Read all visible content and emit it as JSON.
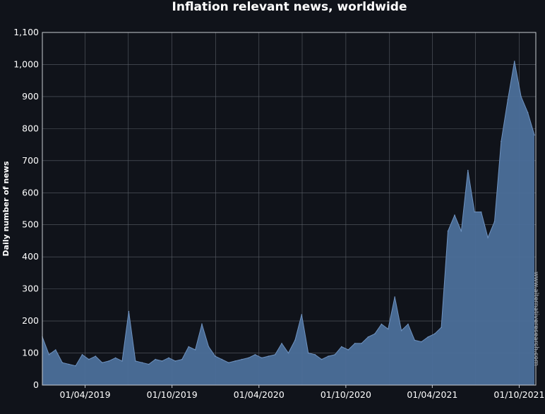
{
  "chart_data": {
    "type": "area",
    "title": "Inflation relevant news, worldwide",
    "xlabel": "",
    "ylabel": "Daily number of news",
    "ylim": [
      0,
      1100
    ],
    "yticks": [
      0,
      100,
      200,
      300,
      400,
      500,
      600,
      700,
      800,
      900,
      1000,
      1100
    ],
    "ytick_labels": [
      "0",
      "100",
      "200",
      "300",
      "400",
      "500",
      "600",
      "700",
      "800",
      "900",
      "1,000",
      "1,100"
    ],
    "xticks": [
      "2019-04-01",
      "2019-10-01",
      "2020-04-01",
      "2020-10-01",
      "2021-04-01",
      "2021-10-01"
    ],
    "xtick_labels": [
      "01/04/2019",
      "01/10/2019",
      "01/04/2020",
      "01/10/2020",
      "01/04/2021",
      "01/10/2021"
    ],
    "xlim": [
      "2019-01-01",
      "2021-11-05"
    ],
    "grid": true,
    "fill_color": "#4c6f9a",
    "line_color": "#6e92c0",
    "watermark": "www.alternativeresearch.com",
    "series": [
      {
        "x": [
          "2019-01-01",
          "2019-01-15",
          "2019-01-29",
          "2019-02-12",
          "2019-02-26",
          "2019-03-12",
          "2019-03-26",
          "2019-04-09",
          "2019-04-23",
          "2019-05-07",
          "2019-05-21",
          "2019-06-04",
          "2019-06-18",
          "2019-07-02",
          "2019-07-16",
          "2019-07-30",
          "2019-08-13",
          "2019-08-27",
          "2019-09-10",
          "2019-09-24",
          "2019-10-08",
          "2019-10-22",
          "2019-11-05",
          "2019-11-19",
          "2019-12-03",
          "2019-12-17",
          "2019-12-31",
          "2020-01-14",
          "2020-01-28",
          "2020-02-11",
          "2020-02-25",
          "2020-03-10",
          "2020-03-24",
          "2020-04-07",
          "2020-04-21",
          "2020-05-05",
          "2020-05-19",
          "2020-06-02",
          "2020-06-16",
          "2020-06-30",
          "2020-07-14",
          "2020-07-28",
          "2020-08-11",
          "2020-08-25",
          "2020-09-08",
          "2020-09-22",
          "2020-10-06",
          "2020-10-20",
          "2020-11-03",
          "2020-11-17",
          "2020-12-01",
          "2020-12-15",
          "2020-12-29",
          "2021-01-12",
          "2021-01-26",
          "2021-02-09",
          "2021-02-23",
          "2021-03-09",
          "2021-03-23",
          "2021-04-06",
          "2021-04-20",
          "2021-05-04",
          "2021-05-18",
          "2021-06-01",
          "2021-06-15",
          "2021-06-29",
          "2021-07-13",
          "2021-07-27",
          "2021-08-10",
          "2021-08-24",
          "2021-09-07",
          "2021-09-21",
          "2021-10-05",
          "2021-10-19",
          "2021-11-02"
        ],
        "y": [
          150,
          95,
          110,
          70,
          65,
          60,
          95,
          80,
          90,
          70,
          75,
          85,
          75,
          230,
          75,
          70,
          65,
          80,
          75,
          85,
          75,
          80,
          120,
          110,
          190,
          120,
          90,
          80,
          70,
          75,
          80,
          85,
          95,
          85,
          90,
          95,
          130,
          100,
          140,
          220,
          100,
          95,
          80,
          90,
          95,
          120,
          110,
          130,
          130,
          150,
          160,
          190,
          175,
          275,
          170,
          190,
          140,
          135,
          150,
          160,
          180,
          480,
          530,
          480,
          670,
          540,
          540,
          460,
          510,
          760,
          890,
          1010,
          900,
          850,
          780
        ]
      }
    ]
  }
}
